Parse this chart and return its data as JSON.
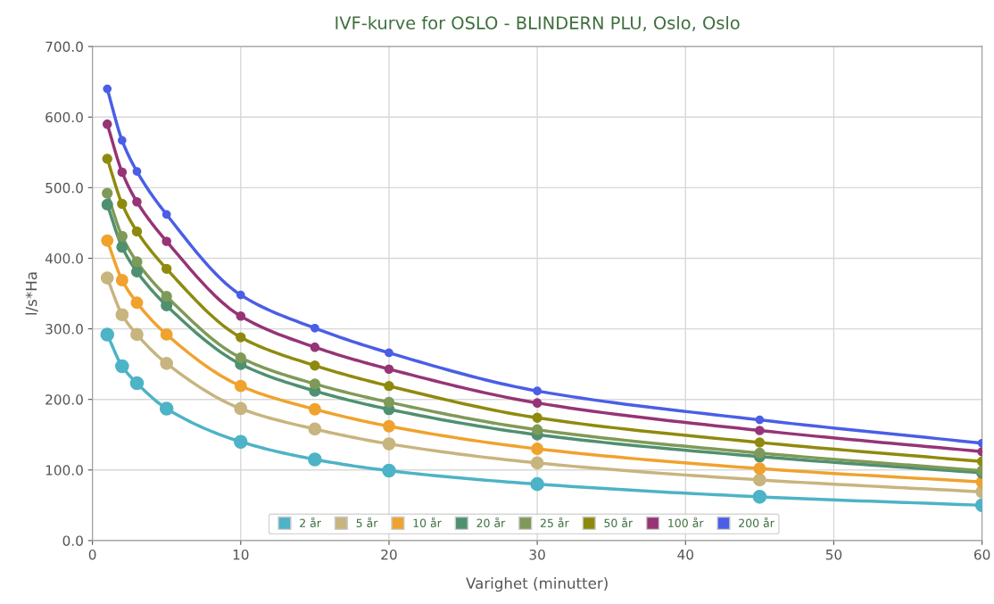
{
  "chart_data": {
    "type": "line",
    "title": "IVF-kurve for OSLO - BLINDERN PLU, Oslo, Oslo",
    "xlabel": "Varighet (minutter)",
    "ylabel": "l/s*Ha",
    "x": [
      1,
      2,
      3,
      5,
      10,
      15,
      20,
      30,
      45,
      60
    ],
    "series": [
      {
        "name": "2 år",
        "color": "#4db3c6",
        "values": [
          292,
          247,
          223,
          187,
          140,
          115,
          99,
          80,
          62,
          50
        ]
      },
      {
        "name": "5 år",
        "color": "#c8b47e",
        "values": [
          372,
          320,
          292,
          251,
          187,
          158,
          137,
          110,
          86,
          69
        ]
      },
      {
        "name": "10 år",
        "color": "#f0a22e",
        "values": [
          425,
          369,
          337,
          292,
          219,
          186,
          162,
          130,
          102,
          83
        ]
      },
      {
        "name": "20 år",
        "color": "#4f9070",
        "values": [
          476,
          416,
          381,
          333,
          250,
          212,
          186,
          150,
          119,
          96
        ]
      },
      {
        "name": "25 år",
        "color": "#7f9a58",
        "values": [
          492,
          431,
          395,
          346,
          259,
          222,
          196,
          157,
          124,
          99
        ]
      },
      {
        "name": "50 år",
        "color": "#8f8a0e",
        "values": [
          541,
          477,
          438,
          385,
          288,
          248,
          219,
          174,
          139,
          112
        ]
      },
      {
        "name": "100 år",
        "color": "#963476",
        "values": [
          590,
          522,
          480,
          424,
          318,
          274,
          243,
          195,
          156,
          126
        ]
      },
      {
        "name": "200 år",
        "color": "#4a5ee6",
        "values": [
          640,
          567,
          523,
          462,
          348,
          301,
          266,
          212,
          171,
          138
        ]
      }
    ],
    "xlim": [
      0,
      60
    ],
    "xticks": [
      0,
      10,
      20,
      30,
      40,
      50,
      60
    ],
    "ylim": [
      0,
      700
    ],
    "yticks": [
      {
        "value": 0,
        "label": "0.0"
      },
      {
        "value": 100,
        "label": "100.0"
      },
      {
        "value": 200,
        "label": "200.0"
      },
      {
        "value": 300,
        "label": "300.0"
      },
      {
        "value": 400,
        "label": "400.0"
      },
      {
        "value": 500,
        "label": "500.0"
      },
      {
        "value": 600,
        "label": "600.0"
      },
      {
        "value": 700,
        "label": "700.0"
      }
    ],
    "grid": true,
    "legend": "bottom",
    "marker": "circle",
    "line_style": "solid"
  }
}
